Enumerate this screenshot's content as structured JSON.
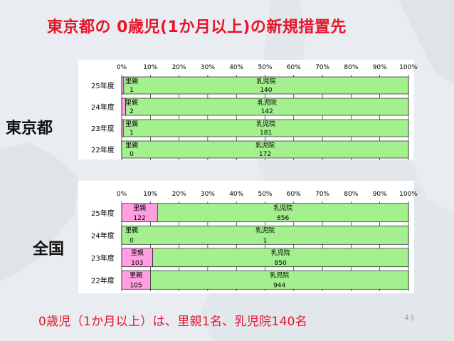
{
  "title": "東京都の 0歳児(1か月以上)の新規措置先",
  "labels": {
    "tokyo": "東京都",
    "nation": "全国"
  },
  "footer": "0歳児（1か月以上）は、里親1名、乳児院140名",
  "page_number": "43",
  "colors": {
    "title": "#e8142a",
    "satooya": "#ff9ee0",
    "nyujiin": "#a4f08e",
    "grid": "#000000"
  },
  "chart_data": [
    {
      "type": "bar",
      "orientation": "horizontal",
      "stacked": "percent",
      "title": "",
      "categories": [
        "25年度",
        "24年度",
        "23年度",
        "22年度"
      ],
      "series": [
        {
          "name": "里親",
          "values": [
            1,
            2,
            1,
            0
          ]
        },
        {
          "name": "乳児院",
          "values": [
            140,
            142,
            181,
            172
          ]
        }
      ],
      "xticks": [
        "0%",
        "10%",
        "20%",
        "30%",
        "40%",
        "50%",
        "60%",
        "70%",
        "80%",
        "90%",
        "100%"
      ],
      "xlim": [
        0,
        100
      ],
      "grid": true,
      "legend": "none"
    },
    {
      "type": "bar",
      "orientation": "horizontal",
      "stacked": "percent",
      "title": "",
      "categories": [
        "25年度",
        "24年度",
        "23年度",
        "22年度"
      ],
      "series": [
        {
          "name": "里親",
          "values": [
            122,
            0,
            103,
            105
          ]
        },
        {
          "name": "乳児院",
          "values": [
            856,
            1,
            850,
            944
          ]
        }
      ],
      "xticks": [
        "0%",
        "10%",
        "20%",
        "30%",
        "40%",
        "50%",
        "60%",
        "70%",
        "80%",
        "90%",
        "100%"
      ],
      "xlim": [
        0,
        100
      ],
      "grid": true,
      "legend": "none"
    }
  ]
}
